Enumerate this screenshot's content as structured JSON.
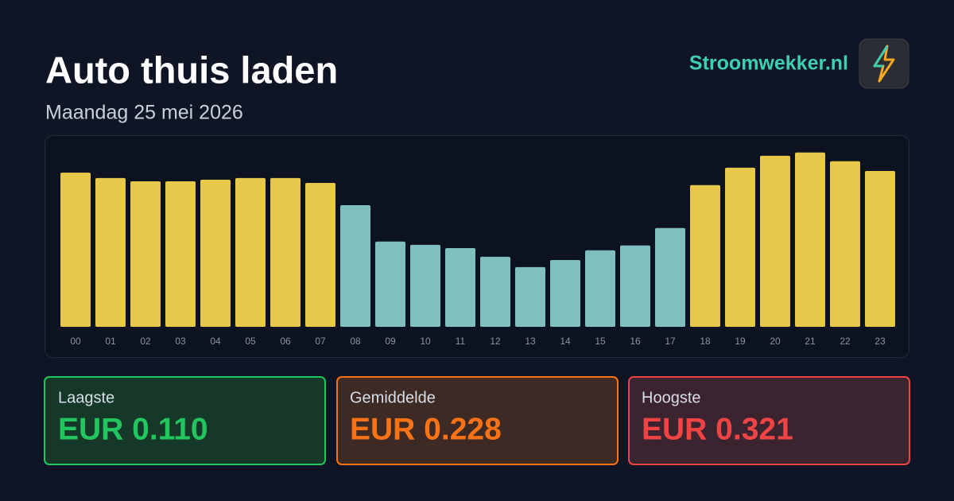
{
  "chart_data": {
    "type": "bar",
    "title": "Auto thuis laden",
    "subtitle": "Maandag 25 mei 2026",
    "categories": [
      "00",
      "01",
      "02",
      "03",
      "04",
      "05",
      "06",
      "07",
      "08",
      "09",
      "10",
      "11",
      "12",
      "13",
      "14",
      "15",
      "16",
      "17",
      "18",
      "19",
      "20",
      "21",
      "22",
      "23"
    ],
    "values": [
      0.284,
      0.274,
      0.268,
      0.268,
      0.271,
      0.274,
      0.274,
      0.265,
      0.224,
      0.157,
      0.151,
      0.145,
      0.129,
      0.11,
      0.123,
      0.141,
      0.15,
      0.182,
      0.261,
      0.293,
      0.315,
      0.321,
      0.305,
      0.287
    ],
    "colors": [
      "#e8c84a",
      "#e8c84a",
      "#e8c84a",
      "#e8c84a",
      "#e8c84a",
      "#e8c84a",
      "#e8c84a",
      "#e8c84a",
      "#7fbfbf",
      "#7fbfbf",
      "#7fbfbf",
      "#7fbfbf",
      "#7fbfbf",
      "#7fbfbf",
      "#7fbfbf",
      "#7fbfbf",
      "#7fbfbf",
      "#7fbfbf",
      "#e8c84a",
      "#e8c84a",
      "#e8c84a",
      "#e8c84a",
      "#e8c84a",
      "#e8c84a"
    ],
    "ylim": [
      0,
      0.35
    ]
  },
  "brand": "Stroomwekker.nl",
  "stats": [
    {
      "label": "Laagste",
      "value": "EUR 0.110"
    },
    {
      "label": "Gemiddelde",
      "value": "EUR 0.228"
    },
    {
      "label": "Hoogste",
      "value": "EUR 0.321"
    }
  ]
}
